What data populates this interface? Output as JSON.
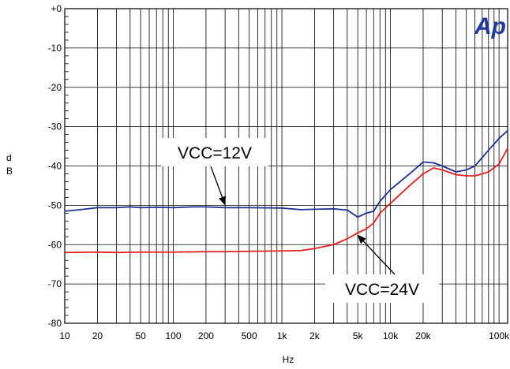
{
  "chart_data": {
    "type": "line",
    "title": "",
    "xlabel": "Hz",
    "ylabel_chars": [
      "d",
      "B"
    ],
    "xscale": "log",
    "xlim": [
      10,
      120000
    ],
    "ylim": [
      -80,
      0
    ],
    "grid": true,
    "x_ticks": [
      {
        "v": 10,
        "label": "10"
      },
      {
        "v": 20,
        "label": "20"
      },
      {
        "v": 50,
        "label": "50"
      },
      {
        "v": 100,
        "label": "100"
      },
      {
        "v": 200,
        "label": "200"
      },
      {
        "v": 500,
        "label": "500"
      },
      {
        "v": 1000,
        "label": "1k"
      },
      {
        "v": 2000,
        "label": "2k"
      },
      {
        "v": 5000,
        "label": "5k"
      },
      {
        "v": 10000,
        "label": "10k"
      },
      {
        "v": 20000,
        "label": "20k"
      },
      {
        "v": 100000,
        "label": "100k"
      }
    ],
    "y_ticks": [
      {
        "v": 0,
        "label": "+0"
      },
      {
        "v": -10,
        "label": "-10"
      },
      {
        "v": -20,
        "label": "-20"
      },
      {
        "v": -30,
        "label": "-30"
      },
      {
        "v": -40,
        "label": "-40"
      },
      {
        "v": -50,
        "label": "-50"
      },
      {
        "v": -60,
        "label": "-60"
      },
      {
        "v": -70,
        "label": "-70"
      },
      {
        "v": -80,
        "label": "-80"
      }
    ],
    "series": [
      {
        "name": "VCC=12V",
        "color": "#1f2f8f",
        "points": [
          [
            10,
            -51.5
          ],
          [
            15,
            -51
          ],
          [
            20,
            -50.6
          ],
          [
            30,
            -50.6
          ],
          [
            40,
            -50.4
          ],
          [
            50,
            -50.6
          ],
          [
            70,
            -50.5
          ],
          [
            100,
            -50.6
          ],
          [
            150,
            -50.4
          ],
          [
            200,
            -50.4
          ],
          [
            300,
            -50.6
          ],
          [
            500,
            -50.6
          ],
          [
            1000,
            -50.7
          ],
          [
            1500,
            -51.1
          ],
          [
            2000,
            -51
          ],
          [
            3000,
            -50.9
          ],
          [
            4000,
            -51.2
          ],
          [
            5000,
            -53
          ],
          [
            6000,
            -52
          ],
          [
            7000,
            -51.5
          ],
          [
            8000,
            -49
          ],
          [
            10000,
            -46
          ],
          [
            15000,
            -42
          ],
          [
            20000,
            -39
          ],
          [
            25000,
            -39.2
          ],
          [
            30000,
            -40
          ],
          [
            40000,
            -41.5
          ],
          [
            50000,
            -41
          ],
          [
            60000,
            -40
          ],
          [
            80000,
            -36
          ],
          [
            100000,
            -33
          ],
          [
            120000,
            -31
          ]
        ]
      },
      {
        "name": "VCC=24V",
        "color": "#e02020",
        "points": [
          [
            10,
            -62
          ],
          [
            20,
            -61.9
          ],
          [
            30,
            -62
          ],
          [
            50,
            -61.9
          ],
          [
            100,
            -61.9
          ],
          [
            200,
            -61.8
          ],
          [
            300,
            -61.8
          ],
          [
            500,
            -61.7
          ],
          [
            1000,
            -61.6
          ],
          [
            1500,
            -61.5
          ],
          [
            2000,
            -61
          ],
          [
            3000,
            -60
          ],
          [
            4000,
            -58.5
          ],
          [
            5000,
            -57
          ],
          [
            6000,
            -56
          ],
          [
            7000,
            -54.5
          ],
          [
            8000,
            -52
          ],
          [
            10000,
            -49.5
          ],
          [
            15000,
            -45
          ],
          [
            20000,
            -42
          ],
          [
            25000,
            -40.5
          ],
          [
            30000,
            -41
          ],
          [
            40000,
            -42.2
          ],
          [
            50000,
            -42.5
          ],
          [
            60000,
            -42.5
          ],
          [
            70000,
            -42
          ],
          [
            80000,
            -41.5
          ],
          [
            100000,
            -39.5
          ],
          [
            120000,
            -35.5
          ]
        ]
      }
    ],
    "annotations": [
      {
        "text": "VCC=12V",
        "points_to": [
          300,
          -50.5
        ]
      },
      {
        "text": "VCC=24V",
        "points_to": [
          5000,
          -57
        ]
      }
    ]
  },
  "logo_text": "Ap"
}
